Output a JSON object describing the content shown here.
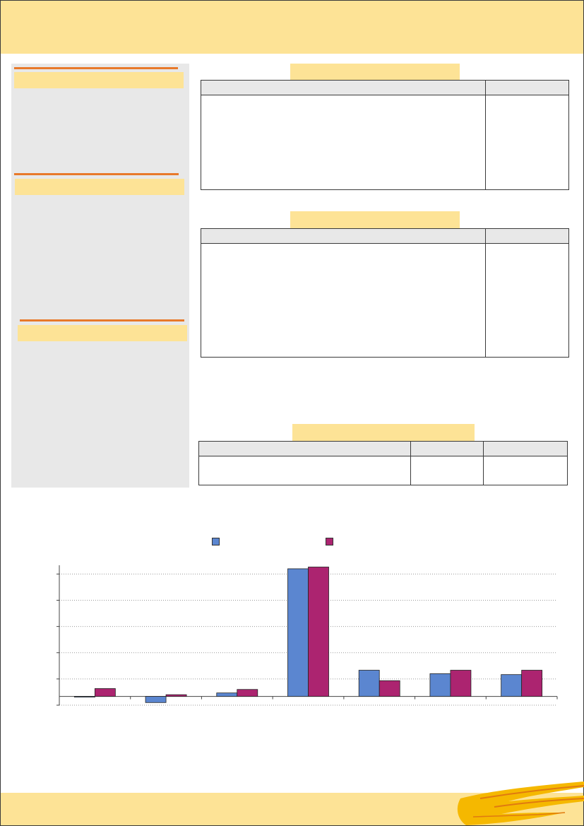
{
  "document": {
    "sections": [
      {
        "id": "panel-1",
        "title": ""
      },
      {
        "id": "panel-2",
        "title": ""
      },
      {
        "id": "panel-3",
        "title": ""
      }
    ]
  },
  "colors": {
    "banner": "#fde396",
    "accent_rule": "#e8792a",
    "sidebar_bg": "#e8e8e8",
    "series_1": "#5b86d0",
    "series_2": "#ac2470",
    "brand_swoosh": "#f5b800"
  },
  "tables": [
    {
      "title": "",
      "columns": [
        "",
        ""
      ],
      "rows": [
        [
          "",
          ""
        ]
      ]
    },
    {
      "title": "",
      "columns": [
        "",
        ""
      ],
      "rows": [
        [
          "",
          ""
        ]
      ]
    },
    {
      "title": "",
      "columns": [
        "",
        "",
        ""
      ],
      "rows": [
        [
          "",
          "",
          ""
        ]
      ]
    }
  ],
  "chart_data": {
    "type": "bar",
    "categories": [
      "",
      "",
      "",
      "",
      "",
      "",
      ""
    ],
    "series": [
      {
        "values": [
          -0.05,
          -0.7,
          0.4,
          14.6,
          3.0,
          2.6,
          2.5
        ]
      },
      {
        "values": [
          0.9,
          0.2,
          0.8,
          14.8,
          1.8,
          3.0,
          3.0
        ]
      }
    ],
    "ylim": [
      -1,
      15
    ],
    "grid": true,
    "legend": "top-center"
  }
}
